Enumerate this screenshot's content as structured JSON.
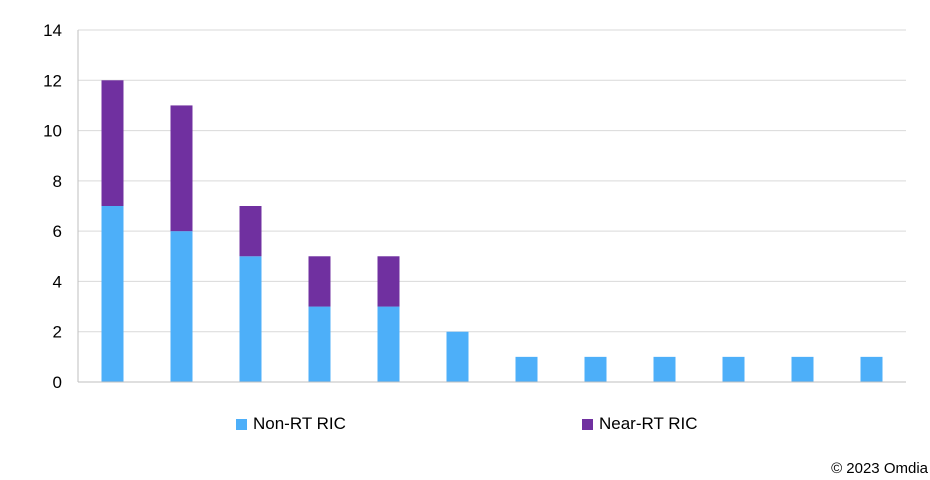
{
  "chart_data": {
    "type": "bar",
    "stacked": true,
    "categories": [
      "",
      "",
      "",
      "",
      "",
      "",
      "",
      "",
      "",
      "",
      "",
      ""
    ],
    "series": [
      {
        "name": "Non-RT RIC",
        "color": "#4DAFF9",
        "values": [
          7,
          6,
          5,
          3,
          3,
          2,
          1,
          1,
          1,
          1,
          1,
          1
        ]
      },
      {
        "name": "Near-RT RIC",
        "color": "#7030A0",
        "values": [
          5,
          5,
          2,
          2,
          2,
          0,
          0,
          0,
          0,
          0,
          0,
          0
        ]
      }
    ],
    "title": "",
    "xlabel": "",
    "ylabel": "",
    "ylim": [
      0,
      14
    ],
    "yticks": [
      0,
      2,
      4,
      6,
      8,
      10,
      12,
      14
    ],
    "grid": true,
    "legend_position": "bottom"
  },
  "footer": {
    "copyright": "© 2023 Omdia"
  }
}
